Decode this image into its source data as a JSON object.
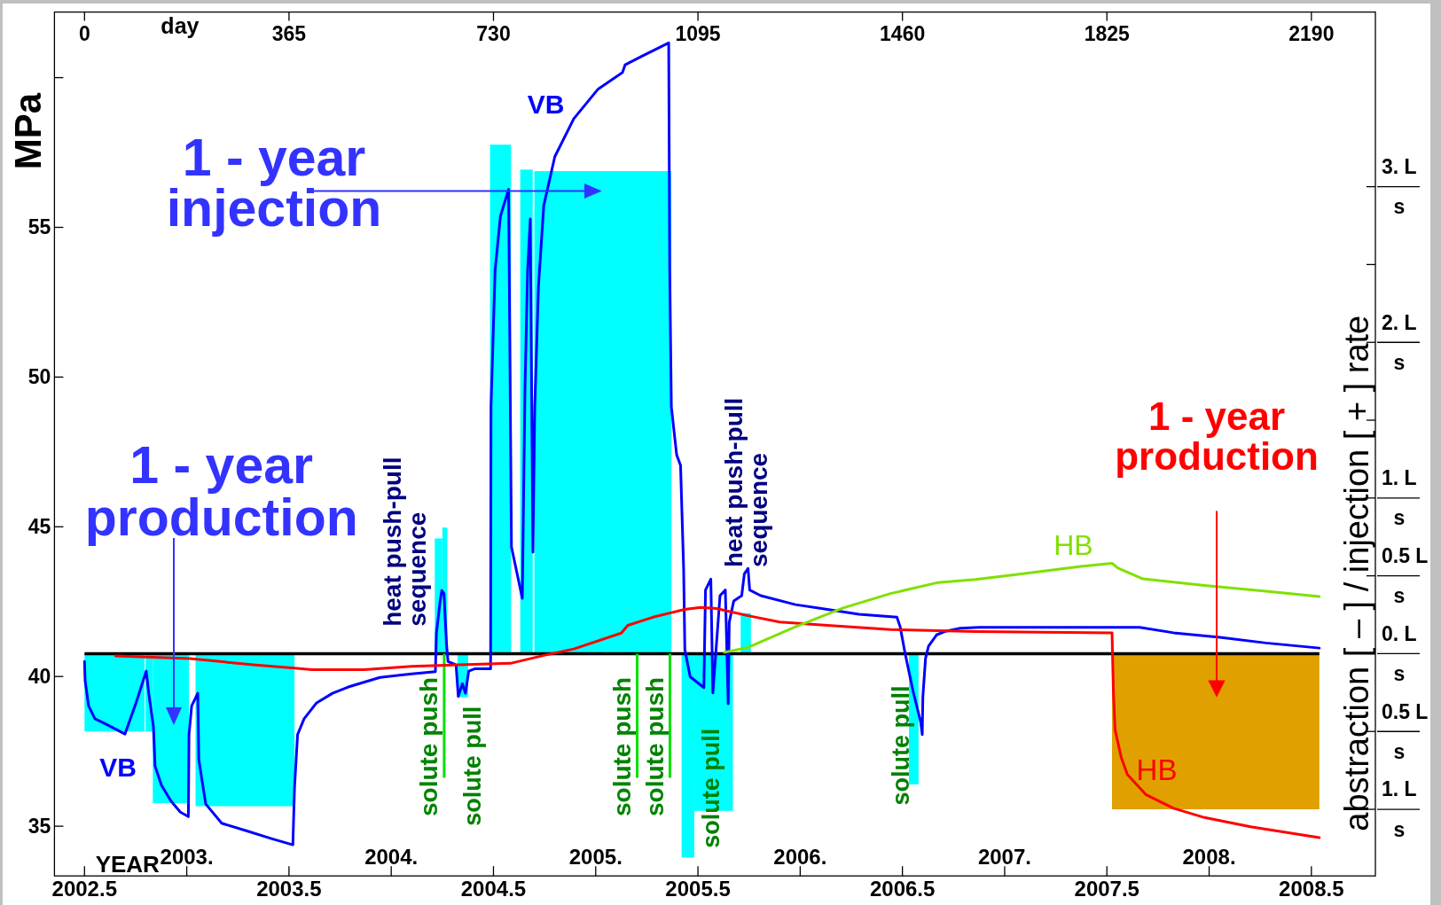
{
  "chart_data": {
    "type": "line",
    "xlabel": "YEAR",
    "x2label": "day",
    "ylabel": "MPa",
    "y2label": "abstraction [ – ] / injection [ + ] rate",
    "xlim": [
      2002.353,
      2008.813
    ],
    "xticks": [
      2002.5,
      {
        "value": 2003,
        "label": null
      },
      2003.5,
      {
        "value": 2004,
        "label": null
      },
      2004.5,
      {
        "value": 2005,
        "label": null
      },
      2005.5,
      {
        "value": 2006,
        "label": null
      },
      2006.5,
      {
        "value": 2007,
        "label": null
      },
      2007.5,
      {
        "value": 2008,
        "label": null
      },
      2008.5
    ],
    "x2lim": [
      -53.7,
      2304.2
    ],
    "x2ticks": [
      0,
      365,
      730,
      1095,
      1460,
      1825,
      2190
    ],
    "ylim": [
      33.34,
      62.19
    ],
    "yticks": [
      35,
      40,
      45,
      50,
      55,
      {
        "value": 60,
        "label": null
      }
    ],
    "y2lim": [
      -1.428,
      4.122
    ],
    "y2ticks": [
      {
        "value": -1,
        "label": "1. L\ns"
      },
      {
        "value": -0.5,
        "label": "0.5 L\ns"
      },
      {
        "value": 0,
        "label": "0. L\ns"
      },
      {
        "value": 0.5,
        "label": "0.5 L\ns"
      },
      {
        "value": 1,
        "label": "1. L\ns"
      },
      {
        "value": 1.5,
        "label": null
      },
      {
        "value": 2,
        "label": "2. L\ns"
      },
      {
        "value": 2.5,
        "label": null
      },
      {
        "value": 3,
        "label": "3. L\ns"
      }
    ],
    "series": [
      {
        "name": "VB",
        "color": "#0000ff",
        "x": [
          2002.5,
          2002.503,
          2002.52,
          2002.551,
          2002.613,
          2002.698,
          2002.752,
          2002.802,
          2002.814,
          2002.837,
          2002.845,
          2002.876,
          2002.923,
          2002.969,
          2003.008,
          2003.011,
          2003.024,
          2003.054,
          2003.059,
          2003.093,
          2003.171,
          2003.295,
          2003.418,
          2003.519,
          2003.527,
          2003.542,
          2003.574,
          2003.635,
          2003.713,
          2003.79,
          2003.945,
          2004.1,
          2004.216,
          2004.221,
          2004.239,
          2004.247,
          2004.258,
          2004.271,
          2004.278,
          2004.317,
          2004.328,
          2004.348,
          2004.363,
          2004.379,
          2004.41,
          2004.486,
          2004.488,
          2004.508,
          2004.534,
          2004.574,
          2004.588,
          2004.641,
          2004.654,
          2004.667,
          2004.68,
          2004.693,
          2004.702,
          2004.72,
          2004.746,
          2004.8,
          2004.893,
          2005.012,
          2005.131,
          2005.144,
          2005.224,
          2005.357,
          2005.362,
          2005.37,
          2005.396,
          2005.415,
          2005.43,
          2005.436,
          2005.462,
          2005.529,
          2005.537,
          2005.563,
          2005.573,
          2005.608,
          2005.634,
          2005.648,
          2005.653,
          2005.675,
          2005.714,
          2005.727,
          2005.745,
          2005.753,
          2005.807,
          2005.977,
          2006.133,
          2006.287,
          2006.473,
          2006.489,
          2006.512,
          2006.551,
          2006.589,
          2006.597,
          2006.6,
          2006.613,
          2006.628,
          2006.667,
          2006.706,
          2006.783,
          2006.876,
          2007.66,
          2007.826,
          2008.052,
          2008.278,
          2008.539
        ],
        "values": [
          40.5,
          39.86,
          39.02,
          38.59,
          38.38,
          38.08,
          39.12,
          40.18,
          39.44,
          38.33,
          37.01,
          36.37,
          35.84,
          35.47,
          35.32,
          38.06,
          39.02,
          39.44,
          37.22,
          35.74,
          35.1,
          34.84,
          34.58,
          34.38,
          36.27,
          38.06,
          38.59,
          39.12,
          39.44,
          39.65,
          39.97,
          40.09,
          40.16,
          41.45,
          42.5,
          42.87,
          42.77,
          41.02,
          40.5,
          40.39,
          39.33,
          39.76,
          39.44,
          40.18,
          40.26,
          40.26,
          49.0,
          53.56,
          55.37,
          56.27,
          44.33,
          42.61,
          49.58,
          53.56,
          55.28,
          44.15,
          49.0,
          53.02,
          55.73,
          57.36,
          58.63,
          59.62,
          60.17,
          60.43,
          60.71,
          61.16,
          53.56,
          49.0,
          47.4,
          47.05,
          43.61,
          40.89,
          39.99,
          39.63,
          42.89,
          43.25,
          39.45,
          42.7,
          42.89,
          39.09,
          41.81,
          42.52,
          42.7,
          43.43,
          43.61,
          42.89,
          42.7,
          42.4,
          42.24,
          42.08,
          41.98,
          41.66,
          40.81,
          39.54,
          38.49,
          38.06,
          39.33,
          40.6,
          41.02,
          41.39,
          41.5,
          41.61,
          41.64,
          41.64,
          41.46,
          41.31,
          41.12,
          40.95
        ]
      },
      {
        "name": "HB",
        "color": "#ff0000",
        "x": [
          2002.652,
          2003.016,
          2003.325,
          2003.527,
          2003.612,
          2003.868,
          2004.1,
          2004.333,
          2004.583,
          2004.738,
          2004.893,
          2005.125,
          2005.157,
          2005.28,
          2005.435,
          2005.513,
          2005.59,
          2005.745,
          2005.9,
          2006.133,
          2006.442,
          2006.857,
          2007.525,
          2007.532,
          2007.54,
          2007.57,
          2007.6,
          2007.69,
          2007.826,
          2007.977,
          2008.203,
          2008.539
        ],
        "values": [
          40.69,
          40.6,
          40.39,
          40.28,
          40.23,
          40.23,
          40.34,
          40.39,
          40.44,
          40.69,
          40.92,
          41.45,
          41.71,
          41.98,
          42.24,
          42.31,
          42.27,
          42.03,
          41.82,
          41.71,
          41.57,
          41.5,
          41.46,
          39.46,
          38.22,
          37.3,
          36.73,
          36.06,
          35.6,
          35.29,
          34.98,
          34.62
        ]
      },
      {
        "name": "HB",
        "color": "#80e000",
        "x": [
          2005.629,
          2005.745,
          2005.977,
          2006.21,
          2006.442,
          2006.675,
          2006.857,
          2007.072,
          2007.373,
          2007.525,
          2007.554,
          2007.676,
          2007.977,
          2008.278,
          2008.539
        ],
        "values": [
          40.81,
          40.97,
          41.66,
          42.29,
          42.77,
          43.14,
          43.24,
          43.42,
          43.68,
          43.78,
          43.62,
          43.26,
          43.04,
          42.85,
          42.67
        ]
      },
      {
        "type": "histogram",
        "axis": "y2",
        "color": "#00ffff",
        "bins": [
          2002.5,
          2002.794,
          2002.799,
          2002.834,
          2003.011,
          2003.043,
          2003.527,
          2004.213,
          2004.25,
          2004.274,
          2004.324,
          2004.376,
          2004.483,
          2004.586,
          2004.631,
          2004.692,
          2004.7,
          2005.37,
          2005.42,
          2005.482,
          2005.671,
          2005.709,
          2005.759,
          2006.532,
          2006.579
        ],
        "values": [
          -0.5,
          null,
          -0.5,
          -0.96,
          null,
          -0.98,
          null,
          0.74,
          0.81,
          null,
          -0.28,
          null,
          3.27,
          null,
          3.11,
          null,
          3.1,
          null,
          -1.31,
          -1.01,
          null,
          0.26,
          null,
          -0.84
        ]
      },
      {
        "type": "histogram",
        "axis": "y2",
        "color": "#e0a000",
        "bins": [
          2007.525,
          2008.539
        ],
        "values": [
          -1.0
        ]
      }
    ],
    "ref_lines": [
      {
        "axis": "y2",
        "value": 0,
        "color": "#000000"
      },
      {
        "axis": "x",
        "value": 2004.259,
        "label": "solute push",
        "color": "#00e000"
      },
      {
        "axis": "x",
        "value": 2005.203,
        "label": "solute push",
        "color": "#00e000"
      },
      {
        "axis": "x",
        "value": 2005.363,
        "label": "solute push",
        "color": "#00e000"
      }
    ],
    "annotations": [
      "1 - year\ninjection",
      "1 - year\nproduction",
      "1 - year\nproduction",
      "heat push-pull\nsequence",
      "heat push-pull\nsequence",
      "solute pull",
      "solute pull",
      "solute pull",
      "VB",
      "2003.",
      "2004.",
      "2005.",
      "2006.",
      "2007.",
      "2008."
    ]
  }
}
